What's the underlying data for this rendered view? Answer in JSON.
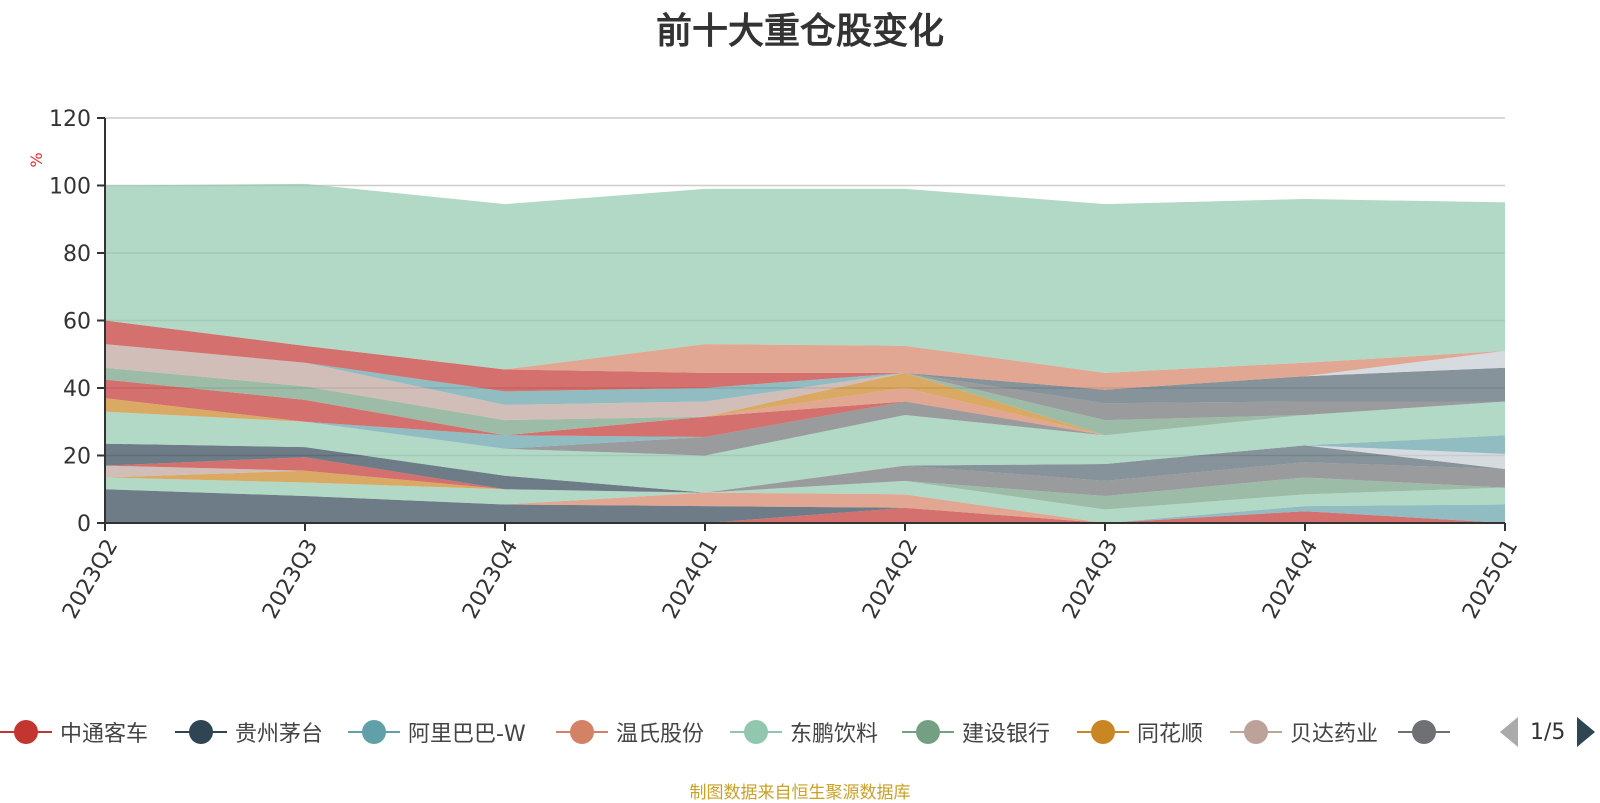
{
  "chart_data": {
    "type": "area",
    "title": "前十大重仓股变化",
    "ylabel": "%",
    "ylim": [
      0,
      120
    ],
    "yticks": [
      0,
      20,
      40,
      60,
      80,
      100,
      120
    ],
    "grid": true,
    "stacked": true,
    "categories": [
      "2023Q2",
      "2023Q3",
      "2023Q4",
      "2024Q1",
      "2024Q2",
      "2024Q3",
      "2024Q4",
      "2025Q1"
    ],
    "series": [
      {
        "name": "中通客车",
        "color": "#c23531",
        "values": [
          0,
          0,
          0,
          0,
          4.5,
          0,
          3.5,
          0
        ]
      },
      {
        "name": "贵州茅台",
        "color": "#2f4554",
        "values": [
          10,
          8,
          5.5,
          5,
          0,
          0,
          0,
          0
        ]
      },
      {
        "name": "阿里巴巴-W",
        "color": "#61a0a8",
        "values": [
          0,
          0,
          0,
          0,
          0,
          0,
          1.5,
          5.5
        ]
      },
      {
        "name": "温氏股份",
        "color": "#d48265",
        "values": [
          0,
          0,
          0,
          4,
          4,
          0,
          0,
          0
        ]
      },
      {
        "name": "东鹏饮料",
        "color": "#91c7ae",
        "values": [
          3.5,
          4,
          4.5,
          0,
          4,
          4,
          3.5,
          5
        ]
      },
      {
        "name": "建设银行",
        "color": "#749f83",
        "values": [
          0,
          0,
          0,
          0,
          0,
          4,
          5,
          0
        ]
      },
      {
        "name": "同花顺",
        "color": "#ca8622",
        "values": [
          0,
          3.5,
          0,
          0,
          0,
          0,
          0,
          0
        ]
      },
      {
        "name": "贝达药业",
        "color": "#bda29a",
        "values": [
          3.5,
          0,
          0,
          0,
          0,
          0,
          0,
          0
        ]
      },
      {
        "name": "",
        "color": "#6e7074",
        "values": [
          0,
          0,
          0,
          0,
          4.5,
          4.5,
          4.5,
          5.5
        ]
      },
      {
        "name": "",
        "color": "#546570",
        "values": [
          0,
          0,
          0,
          0,
          0,
          5,
          5,
          0
        ]
      },
      {
        "name": "",
        "color": "#c4ccd3",
        "values": [
          0,
          0,
          0,
          0,
          0,
          0,
          0,
          4.5
        ]
      },
      {
        "name": "",
        "color": "#c23531",
        "values": [
          0,
          4,
          0,
          0,
          0,
          0,
          0,
          0
        ]
      },
      {
        "name": "",
        "color": "#2f4554",
        "values": [
          6.5,
          3,
          4,
          0,
          0,
          0,
          0,
          0
        ]
      },
      {
        "name": "",
        "color": "#61a0a8",
        "values": [
          0,
          0,
          0,
          0,
          0,
          0,
          0,
          5.5
        ]
      },
      {
        "name": "",
        "color": "#91c7ae",
        "values": [
          9.5,
          7.5,
          8,
          11,
          15,
          8.5,
          9,
          10
        ]
      },
      {
        "name": "",
        "color": "#6e7074",
        "values": [
          0,
          0,
          0,
          5.5,
          4,
          0,
          0,
          0
        ]
      },
      {
        "name": "",
        "color": "#61a0a8",
        "values": [
          0,
          0,
          4,
          0,
          0,
          0,
          0,
          0
        ]
      },
      {
        "name": "",
        "color": "#c23531",
        "values": [
          0,
          0,
          0,
          6,
          0,
          0,
          0,
          0
        ]
      },
      {
        "name": "",
        "color": "#ca8622",
        "values": [
          4,
          0,
          0,
          0,
          0,
          0,
          0,
          0
        ]
      },
      {
        "name": "",
        "color": "#749f83",
        "values": [
          0,
          0,
          0,
          0,
          0,
          0,
          0,
          0
        ]
      },
      {
        "name": "",
        "color": "#d48265",
        "values": [
          0,
          0,
          0,
          0,
          4,
          0,
          0,
          0
        ]
      },
      {
        "name": "",
        "color": "#c23531",
        "values": [
          5.5,
          6.5,
          0,
          0,
          0,
          0,
          0,
          0
        ]
      },
      {
        "name": "",
        "color": "#749f83",
        "values": [
          0,
          0,
          0,
          0,
          0,
          0,
          0,
          0
        ]
      },
      {
        "name": "",
        "color": "#ca8622",
        "values": [
          0,
          0,
          0,
          0,
          4.5,
          0,
          0,
          0
        ]
      },
      {
        "name": "",
        "color": "#749f83",
        "values": [
          3.5,
          4,
          4.5,
          0,
          0,
          4.5,
          0,
          0
        ]
      },
      {
        "name": "",
        "color": "#6e7074",
        "values": [
          0,
          0,
          0,
          0,
          0,
          5,
          4,
          0
        ]
      },
      {
        "name": "",
        "color": "#bda29a",
        "values": [
          7,
          7,
          4.5,
          4.5,
          0,
          0,
          0,
          0
        ]
      },
      {
        "name": "",
        "color": "#546570",
        "values": [
          0,
          0,
          0,
          0,
          0,
          4,
          7.5,
          10
        ]
      },
      {
        "name": "",
        "color": "#c4ccd3",
        "values": [
          0,
          0,
          0,
          0,
          0,
          0,
          0,
          5
        ]
      },
      {
        "name": "",
        "color": "#61a0a8",
        "values": [
          0,
          0,
          4,
          4,
          0,
          0,
          0,
          0
        ]
      },
      {
        "name": "",
        "color": "#c23531",
        "values": [
          7,
          5,
          6.5,
          4.5,
          0,
          0,
          0,
          0
        ]
      },
      {
        "name": "",
        "color": "#d48265",
        "values": [
          0,
          0,
          0,
          8.5,
          8,
          5,
          4,
          0
        ]
      },
      {
        "name": "",
        "color": "#91c7ae",
        "values": [
          40,
          48,
          49,
          46,
          46.5,
          50,
          48.5,
          44
        ]
      }
    ]
  },
  "legend": {
    "items": [
      {
        "label": "中通客车",
        "color": "#c23531"
      },
      {
        "label": "贵州茅台",
        "color": "#2f4554"
      },
      {
        "label": "阿里巴巴-W",
        "color": "#61a0a8"
      },
      {
        "label": "温氏股份",
        "color": "#d48265"
      },
      {
        "label": "东鹏饮料",
        "color": "#91c7ae"
      },
      {
        "label": "建设银行",
        "color": "#749f83"
      },
      {
        "label": "同花顺",
        "color": "#ca8622"
      },
      {
        "label": "贝达药业",
        "color": "#bda29a"
      },
      {
        "label": "",
        "color": "#6e7074"
      }
    ],
    "page": "1/5"
  },
  "source_note": "制图数据来自恒生聚源数据库"
}
